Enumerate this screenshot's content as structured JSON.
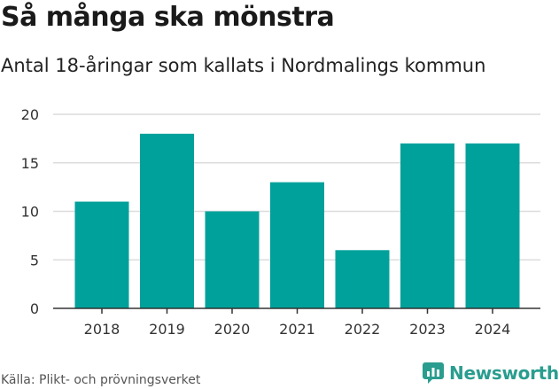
{
  "header": {
    "title": "Så många ska mönstra",
    "subtitle": "Antal 18-åringar som kallats i Nordmalings kommun"
  },
  "footer": {
    "source": "Källa: Plikt- och prövningsverket",
    "logo_label": "Newsworthy"
  },
  "colors": {
    "bar": "#00a19a",
    "grid": "#dcdcdc",
    "axis": "#333333",
    "logo": "#2a9d8f"
  },
  "chart_data": {
    "type": "bar",
    "title": "Så många ska mönstra",
    "subtitle": "Antal 18-åringar som kallats i Nordmalings kommun",
    "categories": [
      "2018",
      "2019",
      "2020",
      "2021",
      "2022",
      "2023",
      "2024"
    ],
    "values": [
      11,
      18,
      10,
      13,
      6,
      17,
      17
    ],
    "xlabel": "",
    "ylabel": "",
    "ylim": [
      0,
      20
    ],
    "yticks": [
      0,
      5,
      10,
      15,
      20
    ],
    "grid": true,
    "legend": "none"
  }
}
